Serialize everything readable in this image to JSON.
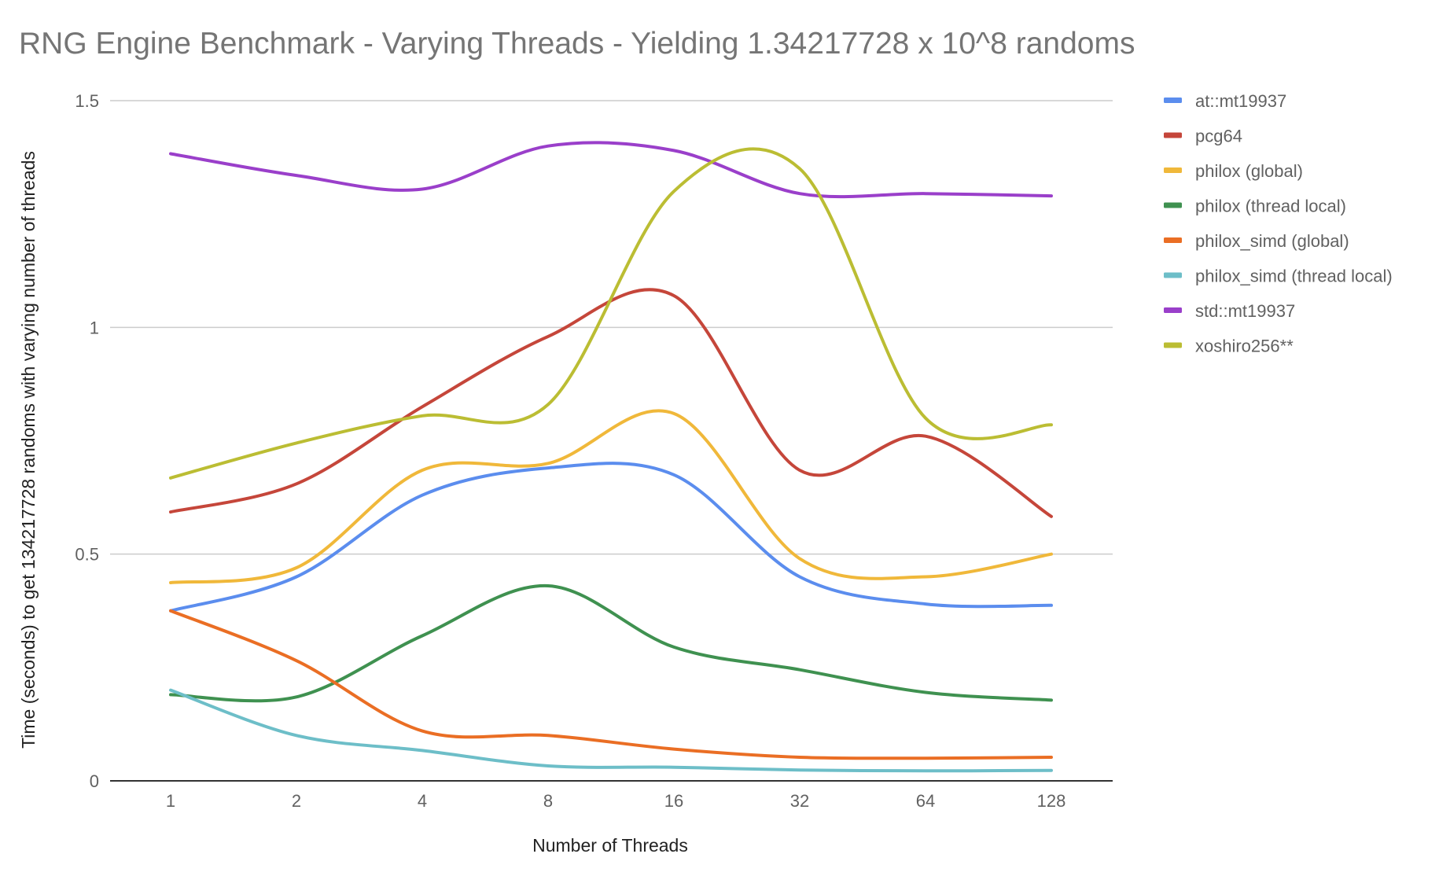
{
  "chart_data": {
    "type": "line",
    "title": "RNG Engine Benchmark - Varying Threads - Yielding 1.34217728 x 10^8 randoms",
    "xlabel": "Number of Threads",
    "ylabel": "Time (seconds) to get 134217728 randoms with varying number of threads",
    "categories": [
      "1",
      "2",
      "4",
      "8",
      "16",
      "32",
      "64",
      "128"
    ],
    "ylim": [
      0,
      1.5
    ],
    "yticks": [
      "0",
      "0.5",
      "1",
      "1.5"
    ],
    "grid": true,
    "legend_position": "right",
    "series": [
      {
        "name": "at::mt19937",
        "color": "#5b8dee",
        "values": [
          0.375,
          0.45,
          0.63,
          0.69,
          0.675,
          0.45,
          0.39,
          0.387
        ]
      },
      {
        "name": "pcg64",
        "color": "#c5463a",
        "values": [
          0.593,
          0.655,
          0.825,
          0.98,
          1.07,
          0.685,
          0.76,
          0.583
        ]
      },
      {
        "name": "philox (global)",
        "color": "#f0b83a",
        "values": [
          0.437,
          0.47,
          0.685,
          0.7,
          0.81,
          0.49,
          0.45,
          0.5
        ]
      },
      {
        "name": "philox (thread local)",
        "color": "#3f9150",
        "values": [
          0.19,
          0.185,
          0.32,
          0.43,
          0.295,
          0.245,
          0.195,
          0.178
        ]
      },
      {
        "name": "philox_simd (global)",
        "color": "#ea6e24",
        "values": [
          0.375,
          0.265,
          0.11,
          0.1,
          0.07,
          0.052,
          0.05,
          0.052
        ]
      },
      {
        "name": "philox_simd (thread local)",
        "color": "#6dbec8",
        "values": [
          0.2,
          0.1,
          0.067,
          0.033,
          0.03,
          0.024,
          0.022,
          0.023
        ]
      },
      {
        "name": "std::mt19937",
        "color": "#9a3fca",
        "values": [
          1.383,
          1.335,
          1.305,
          1.4,
          1.39,
          1.295,
          1.295,
          1.29
        ]
      },
      {
        "name": "xoshiro256**",
        "color": "#bbbd33",
        "values": [
          0.668,
          0.745,
          0.805,
          0.83,
          1.3,
          1.35,
          0.8,
          0.785
        ]
      }
    ]
  }
}
